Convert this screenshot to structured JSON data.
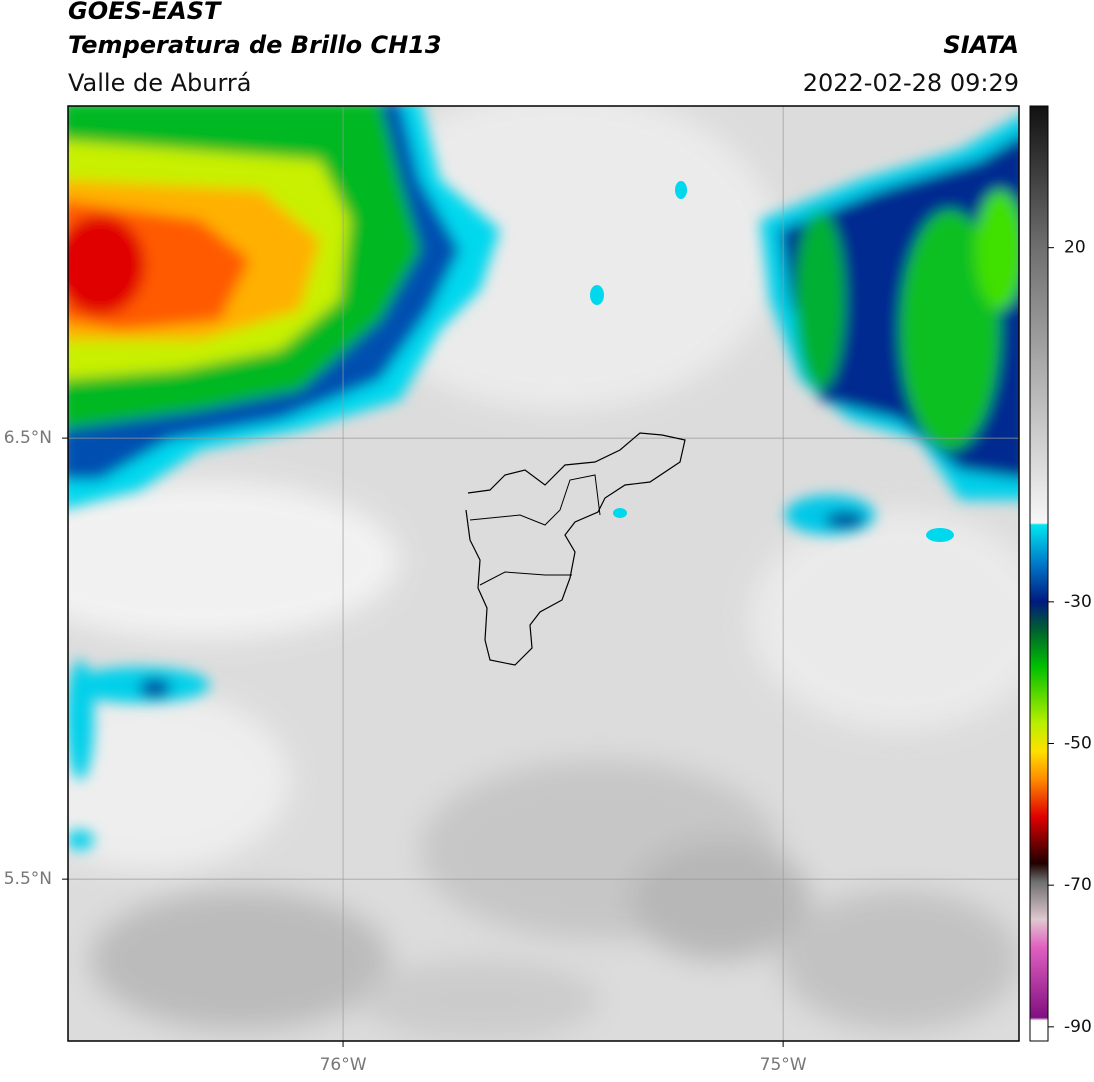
{
  "header": {
    "title": "GOES-EAST",
    "subtitle": "Temperatura de Brillo CH13",
    "region": "Valle de Aburrá",
    "source": "SIATA",
    "timestamp": "2022-02-28 09:29"
  },
  "map": {
    "lon_range": [
      -76.625,
      -74.464
    ],
    "lat_range": [
      5.133,
      7.253
    ],
    "lon_ticks": [
      {
        "value": -76,
        "label": "76°W"
      },
      {
        "value": -75,
        "label": "75°W"
      }
    ],
    "lat_ticks": [
      {
        "value": 6.5,
        "label": "6.5°N"
      },
      {
        "value": 5.5,
        "label": "5.5°N"
      }
    ]
  },
  "colorbar": {
    "range": [
      -92,
      40
    ],
    "ticks": [
      20,
      -30,
      -50,
      -70,
      -90
    ]
  }
}
